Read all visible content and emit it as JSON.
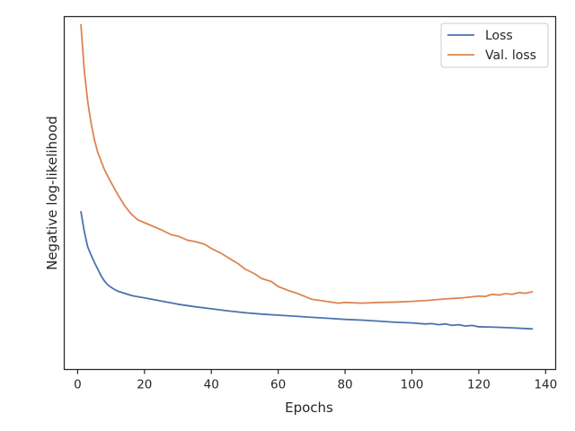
{
  "chart_data": {
    "type": "line",
    "xlabel": "Epochs",
    "ylabel": "Negative log-likelihood",
    "xlim": [
      -4,
      143
    ],
    "xticks": [
      0,
      20,
      40,
      60,
      80,
      100,
      120,
      140
    ],
    "xtick_labels": [
      "0",
      "20",
      "40",
      "60",
      "80",
      "100",
      "120",
      "140"
    ],
    "ylim": [
      0,
      1
    ],
    "yticks_visible": false,
    "grid": false,
    "legend_position": "top-right",
    "series": [
      {
        "name": "Loss",
        "color": "#4c72b0",
        "x": [
          1,
          2,
          3,
          4,
          5,
          6,
          7,
          8,
          9,
          10,
          11,
          12,
          14,
          16,
          18,
          20,
          25,
          30,
          35,
          40,
          45,
          50,
          55,
          60,
          65,
          70,
          75,
          80,
          85,
          90,
          95,
          100,
          104,
          106,
          108,
          110,
          112,
          114,
          116,
          118,
          120,
          125,
          130,
          136
        ],
        "y": [
          0.447,
          0.391,
          0.348,
          0.325,
          0.304,
          0.285,
          0.266,
          0.251,
          0.24,
          0.233,
          0.227,
          0.222,
          0.216,
          0.21,
          0.206,
          0.203,
          0.194,
          0.185,
          0.178,
          0.172,
          0.166,
          0.161,
          0.157,
          0.154,
          0.151,
          0.148,
          0.145,
          0.142,
          0.14,
          0.137,
          0.134,
          0.132,
          0.129,
          0.13,
          0.127,
          0.129,
          0.125,
          0.127,
          0.123,
          0.125,
          0.121,
          0.12,
          0.118,
          0.115
        ]
      },
      {
        "name": "Val. loss",
        "color": "#dd8452",
        "x": [
          1,
          2,
          3,
          4,
          5,
          6,
          7,
          8,
          9,
          10,
          12,
          14,
          16,
          18,
          20,
          25,
          28,
          30,
          33,
          35,
          38,
          40,
          43,
          45,
          48,
          50,
          53,
          55,
          58,
          60,
          63,
          65,
          68,
          70,
          73,
          75,
          78,
          80,
          85,
          90,
          95,
          100,
          105,
          110,
          115,
          120,
          122,
          124,
          126,
          128,
          130,
          132,
          134,
          136
        ],
        "y": [
          0.977,
          0.846,
          0.761,
          0.7,
          0.652,
          0.616,
          0.591,
          0.567,
          0.548,
          0.53,
          0.496,
          0.465,
          0.441,
          0.424,
          0.416,
          0.396,
          0.382,
          0.378,
          0.366,
          0.363,
          0.355,
          0.343,
          0.329,
          0.317,
          0.3,
          0.285,
          0.271,
          0.258,
          0.249,
          0.235,
          0.224,
          0.218,
          0.207,
          0.199,
          0.195,
          0.192,
          0.188,
          0.19,
          0.188,
          0.19,
          0.191,
          0.193,
          0.196,
          0.2,
          0.203,
          0.208,
          0.207,
          0.213,
          0.211,
          0.215,
          0.213,
          0.218,
          0.216,
          0.22
        ]
      }
    ]
  }
}
